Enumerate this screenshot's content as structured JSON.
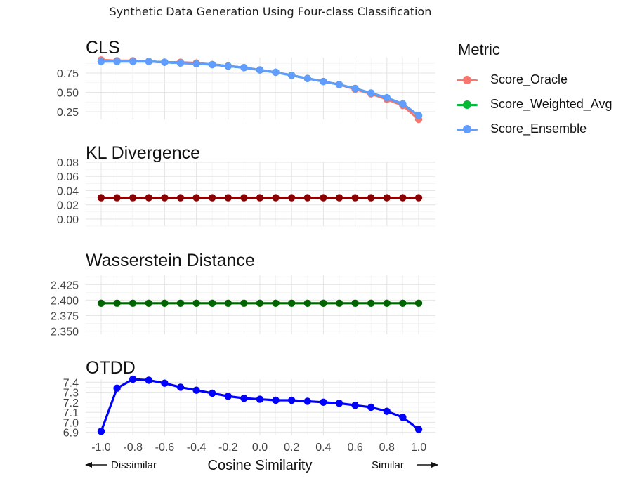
{
  "figure": {
    "title": "Synthetic Data Generation Using Four-class Classification",
    "x_axis": {
      "label": "Cosine Similarity",
      "ticks": [
        "-1.0",
        "-0.8",
        "-0.6",
        "-0.4",
        "-0.2",
        "0.0",
        "0.2",
        "0.4",
        "0.6",
        "0.8",
        "1.0"
      ],
      "left_annotation": "Dissimilar",
      "right_annotation": "Similar"
    }
  },
  "legend": {
    "title": "Metric",
    "items": [
      {
        "label": "Score_Oracle",
        "color": "#F8766D"
      },
      {
        "label": "Score_Weighted_Avg",
        "color": "#00BA38"
      },
      {
        "label": "Score_Ensemble",
        "color": "#619CFF"
      }
    ]
  },
  "chart_data": [
    {
      "type": "line",
      "title": "CLS",
      "x": [
        -1.0,
        -0.9,
        -0.8,
        -0.7,
        -0.6,
        -0.5,
        -0.4,
        -0.3,
        -0.2,
        -0.1,
        0.0,
        0.1,
        0.2,
        0.3,
        0.4,
        0.5,
        0.6,
        0.7,
        0.8,
        0.9,
        1.0
      ],
      "ylim": [
        0.15,
        0.95
      ],
      "yticks": [
        "0.25",
        "0.50",
        "0.75"
      ],
      "series": [
        {
          "name": "Score_Oracle",
          "color": "#F8766D",
          "values": [
            0.92,
            0.91,
            0.91,
            0.9,
            0.89,
            0.89,
            0.88,
            0.86,
            0.84,
            0.82,
            0.79,
            0.76,
            0.72,
            0.68,
            0.64,
            0.6,
            0.54,
            0.48,
            0.41,
            0.33,
            0.15
          ]
        },
        {
          "name": "Score_Weighted_Avg",
          "color": "#00BA38",
          "values": [
            0.9,
            0.9,
            0.9,
            0.9,
            0.89,
            0.88,
            0.87,
            0.86,
            0.84,
            0.82,
            0.79,
            0.76,
            0.72,
            0.68,
            0.64,
            0.6,
            0.55,
            0.49,
            0.43,
            0.35,
            0.2
          ]
        },
        {
          "name": "Score_Ensemble",
          "color": "#619CFF",
          "values": [
            0.9,
            0.9,
            0.9,
            0.9,
            0.89,
            0.88,
            0.87,
            0.86,
            0.84,
            0.82,
            0.79,
            0.76,
            0.72,
            0.68,
            0.64,
            0.6,
            0.55,
            0.49,
            0.43,
            0.35,
            0.2
          ]
        }
      ]
    },
    {
      "type": "line",
      "title": "KL Divergence",
      "x": [
        -1.0,
        -0.9,
        -0.8,
        -0.7,
        -0.6,
        -0.5,
        -0.4,
        -0.3,
        -0.2,
        -0.1,
        0.0,
        0.1,
        0.2,
        0.3,
        0.4,
        0.5,
        0.6,
        0.7,
        0.8,
        0.9,
        1.0
      ],
      "ylim": [
        -0.01,
        0.081
      ],
      "yticks": [
        "0.00",
        "0.02",
        "0.04",
        "0.06",
        "0.08"
      ],
      "series": [
        {
          "color": "#8B0000",
          "values": [
            0.03,
            0.03,
            0.03,
            0.03,
            0.03,
            0.03,
            0.03,
            0.03,
            0.03,
            0.03,
            0.03,
            0.03,
            0.03,
            0.03,
            0.03,
            0.03,
            0.03,
            0.03,
            0.03,
            0.03,
            0.03
          ]
        }
      ]
    },
    {
      "type": "line",
      "title": "Wasserstein Distance",
      "x": [
        -1.0,
        -0.9,
        -0.8,
        -0.7,
        -0.6,
        -0.5,
        -0.4,
        -0.3,
        -0.2,
        -0.1,
        0.0,
        0.1,
        0.2,
        0.3,
        0.4,
        0.5,
        0.6,
        0.7,
        0.8,
        0.9,
        1.0
      ],
      "ylim": [
        2.345,
        2.44
      ],
      "yticks": [
        "2.350",
        "2.375",
        "2.400",
        "2.425"
      ],
      "series": [
        {
          "color": "#006400",
          "values": [
            2.395,
            2.395,
            2.395,
            2.395,
            2.395,
            2.395,
            2.395,
            2.395,
            2.395,
            2.395,
            2.395,
            2.395,
            2.395,
            2.395,
            2.395,
            2.395,
            2.395,
            2.395,
            2.395,
            2.395,
            2.395
          ]
        }
      ]
    },
    {
      "type": "line",
      "title": "OTDD",
      "x": [
        -1.0,
        -0.9,
        -0.8,
        -0.7,
        -0.6,
        -0.5,
        -0.4,
        -0.3,
        -0.2,
        -0.1,
        0.0,
        0.1,
        0.2,
        0.3,
        0.4,
        0.5,
        0.6,
        0.7,
        0.8,
        0.9,
        1.0
      ],
      "ylim": [
        6.87,
        7.43
      ],
      "yticks": [
        "6.9",
        "7.0",
        "7.1",
        "7.2",
        "7.3",
        "7.4"
      ],
      "series": [
        {
          "color": "#0000FF",
          "values": [
            6.91,
            7.34,
            7.43,
            7.42,
            7.39,
            7.35,
            7.32,
            7.29,
            7.26,
            7.24,
            7.23,
            7.22,
            7.22,
            7.21,
            7.2,
            7.19,
            7.17,
            7.15,
            7.11,
            7.05,
            6.93
          ]
        }
      ]
    }
  ]
}
